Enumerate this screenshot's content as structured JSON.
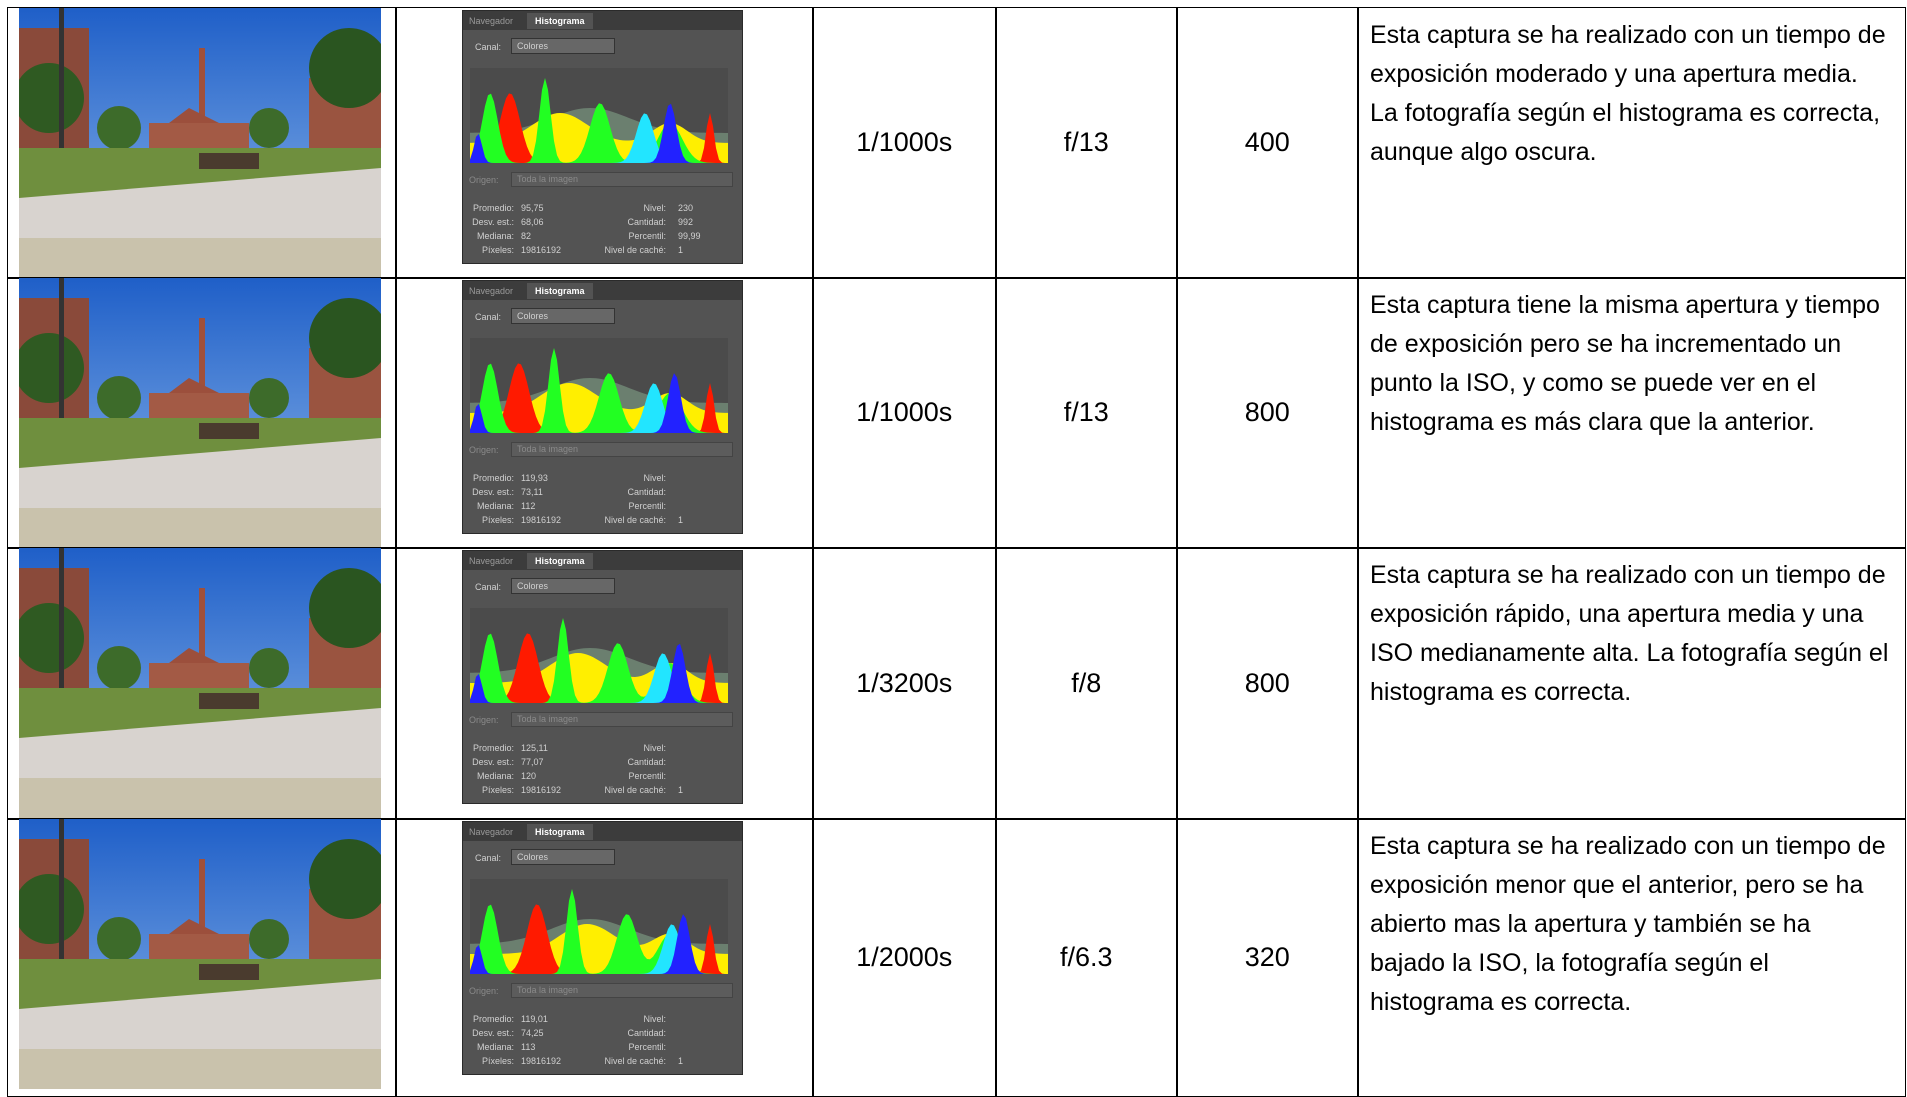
{
  "rows": [
    {
      "histogram": {
        "tabs": [
          "Navegador",
          "Histograma"
        ],
        "channel_label": "Canal:",
        "channel": "Colores",
        "source_label": "Origen:",
        "source": "Toda la imagen",
        "stats_left": [
          [
            "Promedio:",
            "95,75"
          ],
          [
            "Desv. est.:",
            "68,06"
          ],
          [
            "Mediana:",
            "82"
          ],
          [
            "Píxeles:",
            "19816192"
          ]
        ],
        "stats_right": [
          [
            "Nivel:",
            "230"
          ],
          [
            "Cantidad:",
            "992"
          ],
          [
            "Percentil:",
            "99,99"
          ],
          [
            "Nivel de caché:",
            "1"
          ]
        ]
      },
      "shutter": "1/1000s",
      "aperture": "f/13",
      "iso": 400,
      "description": "Esta captura se ha realizado con un tiempo de exposición moderado y una apertura media. La fotografía según el histograma es correcta, aunque algo oscura."
    },
    {
      "histogram": {
        "tabs": [
          "Navegador",
          "Histograma"
        ],
        "channel_label": "Canal:",
        "channel": "Colores",
        "source_label": "Origen:",
        "source": "Toda la imagen",
        "stats_left": [
          [
            "Promedio:",
            "119,93"
          ],
          [
            "Desv. est.:",
            "73,11"
          ],
          [
            "Mediana:",
            "112"
          ],
          [
            "Píxeles:",
            "19816192"
          ]
        ],
        "stats_right": [
          [
            "Nivel:"
          ],
          [
            "Cantidad:"
          ],
          [
            "Percentil:"
          ],
          [
            "Nivel de caché:",
            "1"
          ]
        ]
      },
      "shutter": "1/1000s",
      "aperture": "f/13",
      "iso": 800,
      "description": "Esta captura tiene la misma apertura y tiempo de exposición pero se ha incrementado un punto la ISO, y como se puede ver en el histograma es más clara que la anterior."
    },
    {
      "histogram": {
        "tabs": [
          "Navegador",
          "Histograma"
        ],
        "channel_label": "Canal:",
        "channel": "Colores",
        "source_label": "Origen:",
        "source": "Toda la imagen",
        "stats_left": [
          [
            "Promedio:",
            "125,11"
          ],
          [
            "Desv. est.:",
            "77,07"
          ],
          [
            "Mediana:",
            "120"
          ],
          [
            "Píxeles:",
            "19816192"
          ]
        ],
        "stats_right": [
          [
            "Nivel:"
          ],
          [
            "Cantidad:"
          ],
          [
            "Percentil:"
          ],
          [
            "Nivel de caché:",
            "1"
          ]
        ]
      },
      "shutter": "1/3200s",
      "aperture": "f/8",
      "iso": 800,
      "description": "Esta captura se ha realizado con un tiempo de exposición rápido, una apertura media y una ISO medianamente alta. La fotografía según el histograma es correcta."
    },
    {
      "histogram": {
        "tabs": [
          "Navegador",
          "Histograma"
        ],
        "channel_label": "Canal:",
        "channel": "Colores",
        "source_label": "Origen:",
        "source": "Toda la imagen",
        "stats_left": [
          [
            "Promedio:",
            "119,01"
          ],
          [
            "Desv. est.:",
            "74,25"
          ],
          [
            "Mediana:",
            "113"
          ],
          [
            "Píxeles:",
            "19816192"
          ]
        ],
        "stats_right": [
          [
            "Nivel:"
          ],
          [
            "Cantidad:"
          ],
          [
            "Percentil:"
          ],
          [
            "Nivel de caché:",
            "1"
          ]
        ]
      },
      "shutter": "1/2000s",
      "aperture": "f/6.3",
      "iso": 320,
      "description": "Esta captura se ha realizado con un tiempo de exposición menor que el anterior, pero se ha abierto mas la apertura y también se ha bajado la ISO, la fotografía según el histograma es correcta."
    }
  ]
}
